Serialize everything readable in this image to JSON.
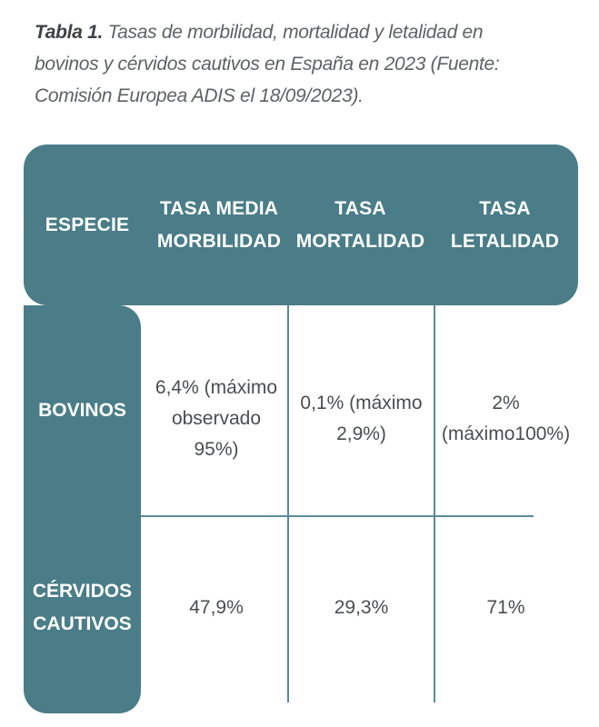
{
  "caption": {
    "lead": "Tabla 1.",
    "text": " Tasas de morbilidad, mortalidad y letalidad en bovinos y cérvidos cautivos en España en 2023 (Fuente: Comisión Europea ADIS el 18/09/2023)."
  },
  "table": {
    "headers": {
      "especie": "ESPECIE",
      "morbilidad": [
        "TASA MEDIA",
        "MORBILIDAD"
      ],
      "mortalidad": [
        "TASA",
        "MORTALIDAD"
      ],
      "letalidad": [
        "TASA",
        "LETALIDAD"
      ]
    },
    "rows": [
      {
        "especie": [
          "BOVINOS"
        ],
        "morbilidad": [
          "6,4% (máximo",
          "observado",
          "95%)"
        ],
        "mortalidad": [
          "0,1% (máximo",
          "2,9%)"
        ],
        "letalidad": [
          "2%",
          "(máximo100%)"
        ]
      },
      {
        "especie": [
          "CÉRVIDOS",
          "CAUTIVOS"
        ],
        "morbilidad": [
          "47,9%"
        ],
        "mortalidad": [
          "29,3%"
        ],
        "letalidad": [
          "71%"
        ]
      }
    ]
  },
  "colors": {
    "header_band": "#4a7d87",
    "grid_lines": "#5b8b95",
    "body_text": "#4b4d4f",
    "caption_text": "#5f6163"
  }
}
